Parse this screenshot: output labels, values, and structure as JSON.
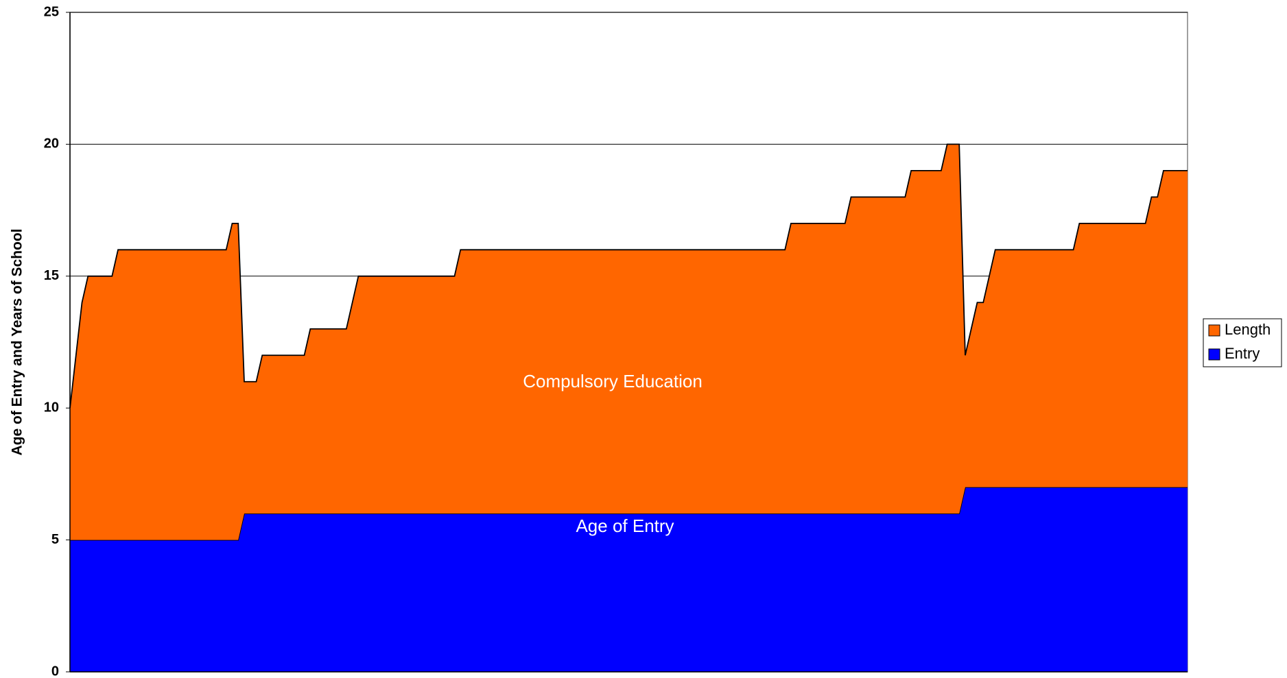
{
  "chart_data": {
    "type": "stacked_area",
    "ylabel": "Age of Entry and Years of School",
    "annotations": [
      "Compulsory Education",
      "Age of Entry"
    ],
    "categories": [
      null,
      null,
      null,
      null,
      null,
      null,
      null,
      null,
      null,
      null,
      null,
      null,
      null,
      null,
      null,
      null,
      null,
      null,
      null,
      null,
      null,
      null,
      null,
      null,
      null,
      null,
      null,
      null,
      null,
      null,
      null,
      null,
      null,
      null,
      null,
      null,
      null,
      null,
      null,
      null,
      null,
      null,
      null,
      null,
      null,
      null,
      null,
      null,
      null,
      null,
      null,
      null,
      null,
      null,
      null,
      null,
      null,
      null,
      null,
      null,
      null,
      null,
      null,
      null,
      null,
      null,
      null,
      null,
      null,
      null,
      null,
      null,
      null,
      null,
      null,
      null,
      null,
      null,
      null,
      null,
      null,
      null,
      null,
      null,
      null,
      null,
      null,
      null,
      null,
      null,
      null,
      null,
      null,
      null,
      null,
      null,
      null,
      null,
      null,
      null,
      null,
      null,
      null,
      null,
      null,
      null,
      null,
      null,
      null,
      null,
      null,
      null,
      null,
      null,
      null,
      null,
      null,
      null,
      null,
      null,
      null,
      null,
      null,
      null,
      null,
      null,
      null,
      null,
      null,
      null,
      null,
      null,
      null,
      null,
      null,
      null,
      null,
      null,
      null,
      null,
      null,
      null,
      null,
      null,
      null,
      null,
      null,
      null,
      null,
      null,
      null,
      null,
      null,
      null,
      null,
      null,
      null,
      null,
      null,
      null,
      null,
      null,
      null,
      null,
      null,
      null,
      null,
      null,
      null,
      null,
      null,
      null,
      null,
      null,
      null,
      null,
      null,
      null,
      null,
      null,
      null,
      null,
      null,
      null,
      null,
      null,
      null
    ],
    "series": [
      {
        "name": "Entry",
        "color": "#0000ff",
        "values": [
          5,
          5,
          5,
          5,
          5,
          5,
          5,
          5,
          5,
          5,
          5,
          5,
          5,
          5,
          5,
          5,
          5,
          5,
          5,
          5,
          5,
          5,
          5,
          5,
          5,
          5,
          5,
          5,
          5,
          6,
          6,
          6,
          6,
          6,
          6,
          6,
          6,
          6,
          6,
          6,
          6,
          6,
          6,
          6,
          6,
          6,
          6,
          6,
          6,
          6,
          6,
          6,
          6,
          6,
          6,
          6,
          6,
          6,
          6,
          6,
          6,
          6,
          6,
          6,
          6,
          6,
          6,
          6,
          6,
          6,
          6,
          6,
          6,
          6,
          6,
          6,
          6,
          6,
          6,
          6,
          6,
          6,
          6,
          6,
          6,
          6,
          6,
          6,
          6,
          6,
          6,
          6,
          6,
          6,
          6,
          6,
          6,
          6,
          6,
          6,
          6,
          6,
          6,
          6,
          6,
          6,
          6,
          6,
          6,
          6,
          6,
          6,
          6,
          6,
          6,
          6,
          6,
          6,
          6,
          6,
          6,
          6,
          6,
          6,
          6,
          6,
          6,
          6,
          6,
          6,
          6,
          6,
          6,
          6,
          6,
          6,
          6,
          6,
          6,
          6,
          6,
          6,
          6,
          6,
          6,
          6,
          6,
          6,
          6,
          7,
          7,
          7,
          7,
          7,
          7,
          7,
          7,
          7,
          7,
          7,
          7,
          7,
          7,
          7,
          7,
          7,
          7,
          7,
          7,
          7,
          7,
          7,
          7,
          7,
          7,
          7,
          7,
          7,
          7,
          7,
          7,
          7,
          7,
          7,
          7,
          7,
          7
        ]
      },
      {
        "name": "Length",
        "color": "#ff6600",
        "values": [
          5,
          7,
          9,
          10,
          10,
          10,
          10,
          10,
          11,
          11,
          11,
          11,
          11,
          11,
          11,
          11,
          11,
          11,
          11,
          11,
          11,
          11,
          11,
          11,
          11,
          11,
          11,
          12,
          12,
          5,
          5,
          5,
          6,
          6,
          6,
          6,
          6,
          6,
          6,
          6,
          7,
          7,
          7,
          7,
          7,
          7,
          7,
          8,
          9,
          9,
          9,
          9,
          9,
          9,
          9,
          9,
          9,
          9,
          9,
          9,
          9,
          9,
          9,
          9,
          9,
          10,
          10,
          10,
          10,
          10,
          10,
          10,
          10,
          10,
          10,
          10,
          10,
          10,
          10,
          10,
          10,
          10,
          10,
          10,
          10,
          10,
          10,
          10,
          10,
          10,
          10,
          10,
          10,
          10,
          10,
          10,
          10,
          10,
          10,
          10,
          10,
          10,
          10,
          10,
          10,
          10,
          10,
          10,
          10,
          10,
          10,
          10,
          10,
          10,
          10,
          10,
          10,
          10,
          10,
          10,
          11,
          11,
          11,
          11,
          11,
          11,
          11,
          11,
          11,
          11,
          12,
          12,
          12,
          12,
          12,
          12,
          12,
          12,
          12,
          12,
          13,
          13,
          13,
          13,
          13,
          13,
          14,
          14,
          14,
          5,
          6,
          7,
          7,
          8,
          9,
          9,
          9,
          9,
          9,
          9,
          9,
          9,
          9,
          9,
          9,
          9,
          9,
          9,
          10,
          10,
          10,
          10,
          10,
          10,
          10,
          10,
          10,
          10,
          10,
          10,
          11,
          11,
          12,
          12,
          12,
          12,
          12
        ]
      }
    ],
    "ylim": [
      0,
      25
    ],
    "yticks": [
      0,
      5,
      10,
      15,
      20,
      25
    ],
    "grid": true,
    "legend": "right"
  }
}
